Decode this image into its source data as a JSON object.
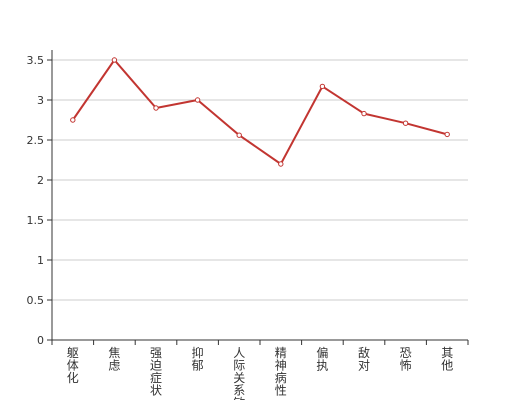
{
  "chart_data": {
    "type": "line",
    "title": "",
    "xlabel": "",
    "ylabel": "",
    "categories": [
      "躯体化",
      "焦虑",
      "强迫症状",
      "抑郁",
      "人际关系敏感",
      "精神病性",
      "偏执",
      "敌对",
      "恐怖",
      "其他"
    ],
    "series": [
      {
        "values": [
          2.75,
          3.5,
          2.9,
          3.0,
          2.56,
          2.2,
          3.17,
          2.83,
          2.71,
          2.57
        ]
      }
    ],
    "ylim": [
      0,
      3.5
    ],
    "yticks": [
      "0",
      "0.5",
      "1",
      "1.5",
      "2",
      "2.5",
      "3",
      "3.5"
    ],
    "grid": true,
    "colors": {
      "line": "#c23531",
      "grid": "#cccccc",
      "axis": "#333333"
    }
  }
}
